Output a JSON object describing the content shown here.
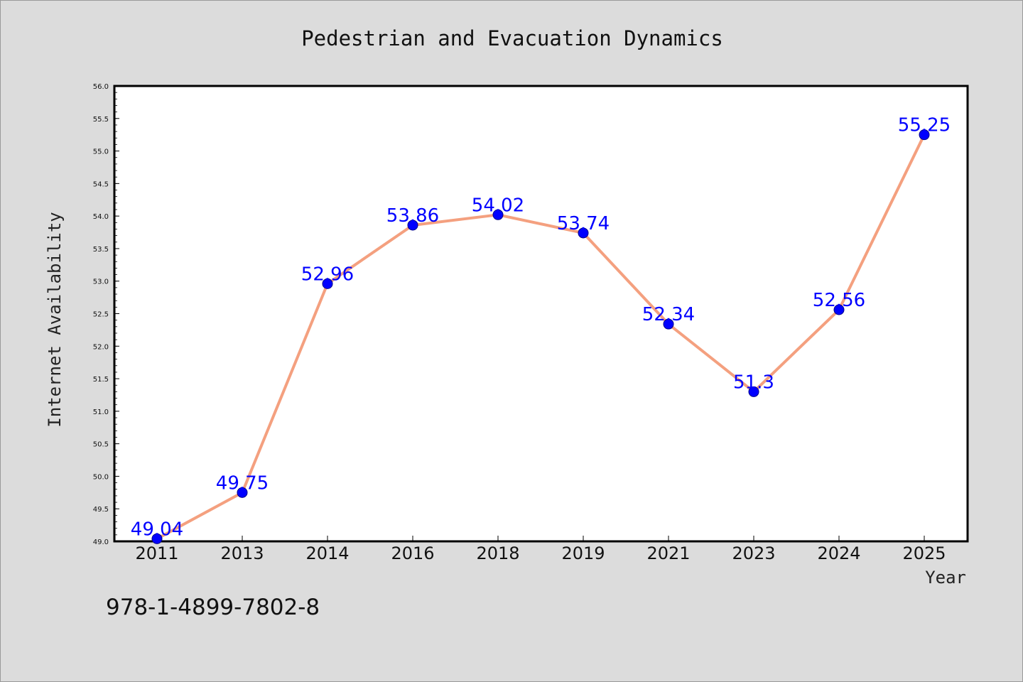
{
  "chart_data": {
    "type": "line",
    "title": "Pedestrian and Evacuation Dynamics",
    "xlabel": "Year",
    "ylabel": "Internet Availability",
    "categories": [
      "2011",
      "2013",
      "2014",
      "2016",
      "2018",
      "2019",
      "2021",
      "2023",
      "2024",
      "2025"
    ],
    "series": [
      {
        "values": [
          49.04,
          49.75,
          52.96,
          53.86,
          54.02,
          53.74,
          52.34,
          51.3,
          52.56,
          55.25
        ],
        "labels": [
          "49.04",
          "49.75",
          "52.96",
          "53.86",
          "54.02",
          "53.74",
          "52.34",
          "51.3",
          "52.56",
          "55.25"
        ],
        "line_color": "#f4a07f",
        "marker_color": "#0000ff"
      }
    ],
    "ylim": [
      49.0,
      56.0
    ],
    "yticks": [
      "49.0",
      "49.5",
      "50.0",
      "50.5",
      "51.0",
      "51.5",
      "52.0",
      "52.5",
      "53.0",
      "53.5",
      "54.0",
      "54.5",
      "55.0",
      "55.5",
      "56.0"
    ],
    "grid": false,
    "legend": "none"
  },
  "footer": {
    "isbn": "978-1-4899-7802-8"
  },
  "colors": {
    "background": "#dcdcdc",
    "plot_background": "#ffffff",
    "line": "#f4a07f",
    "marker": "#0000ff",
    "data_label": "#0000ff"
  }
}
